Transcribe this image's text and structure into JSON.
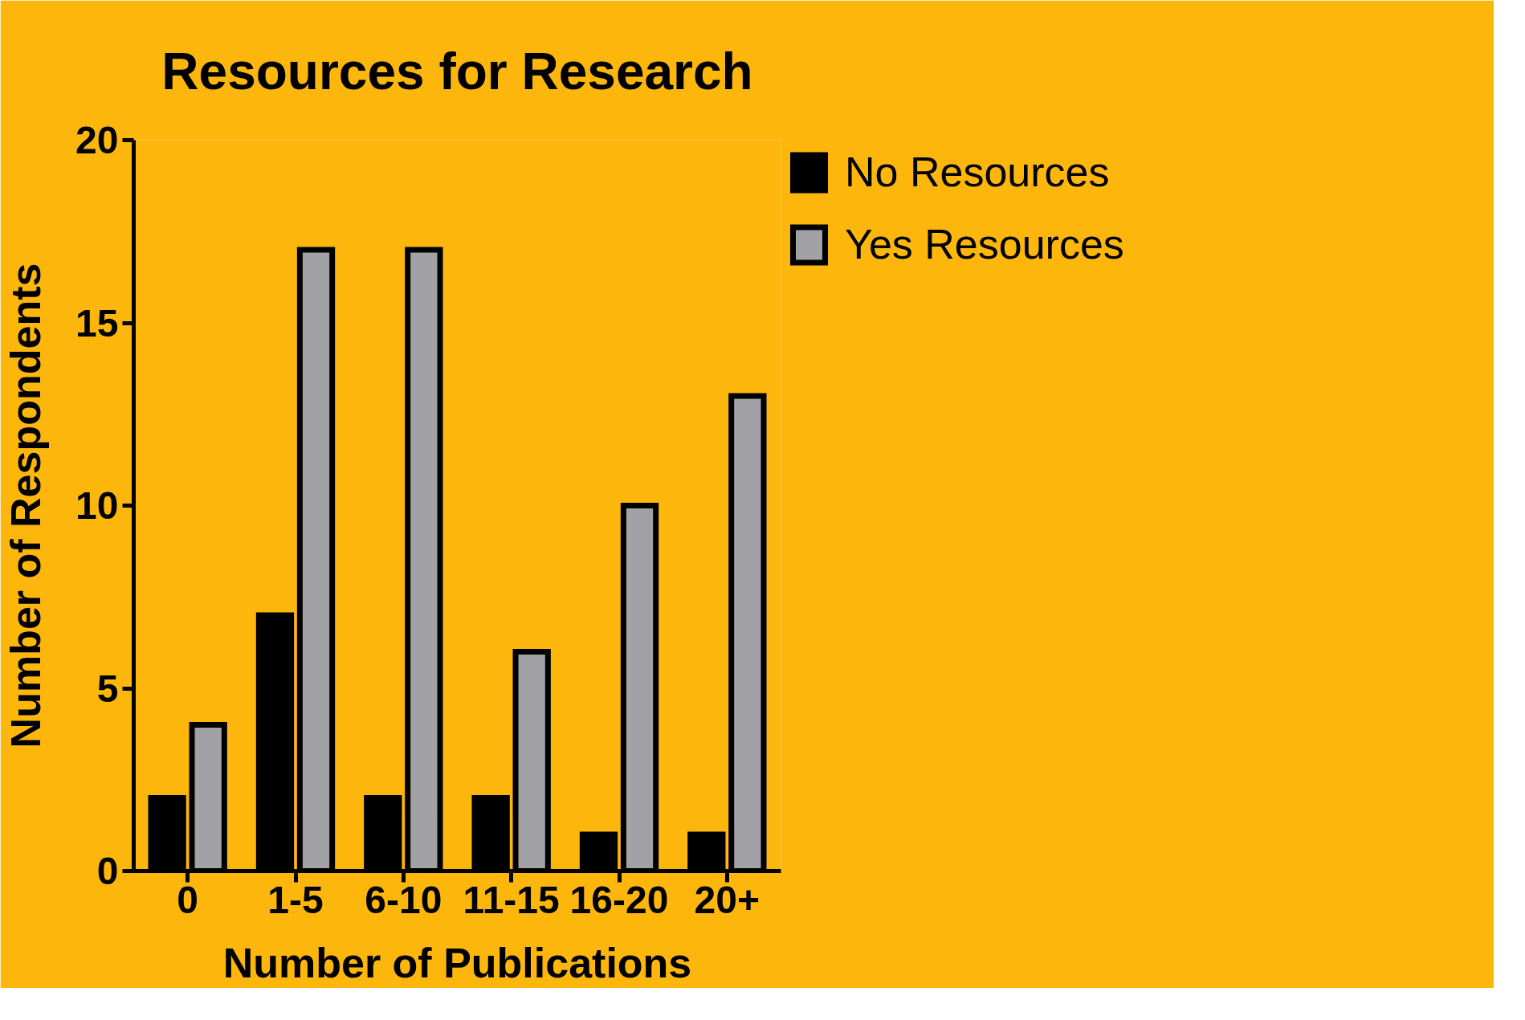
{
  "chart_data": {
    "type": "bar",
    "title": "Resources for Research",
    "xlabel": "Number of Publications",
    "ylabel": "Number of Respondents",
    "categories": [
      "0",
      "1-5",
      "6-10",
      "11-15",
      "16-20",
      "20+"
    ],
    "series": [
      {
        "name": "No Resources",
        "color": "#000000",
        "values": [
          2,
          7,
          2,
          2,
          1,
          1
        ]
      },
      {
        "name": "Yes Resources",
        "color": "#a2a1a6",
        "values": [
          4,
          17,
          17,
          6,
          10,
          13
        ]
      }
    ],
    "ylim": [
      0,
      20
    ],
    "yticks": [
      0,
      5,
      10,
      15,
      20
    ],
    "grid": false,
    "legend": "top right"
  }
}
